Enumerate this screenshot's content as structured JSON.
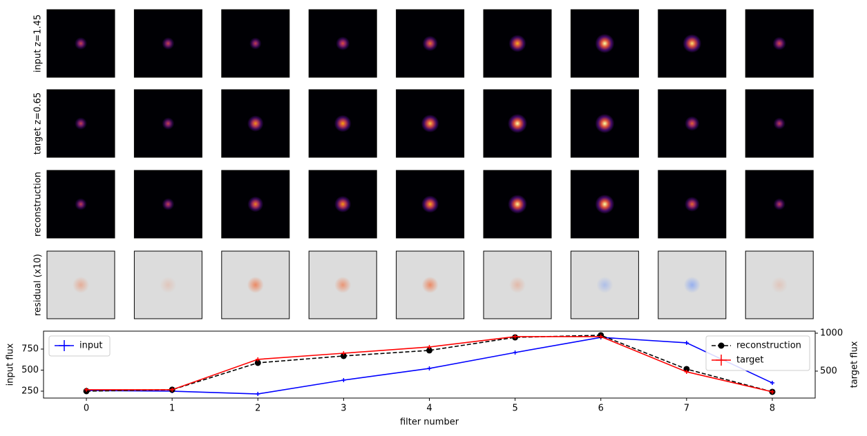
{
  "image_grid": {
    "row_labels": [
      "input z=1.45",
      "target z=0.65",
      "reconstruction",
      "residual (x10)"
    ]
  },
  "chart_data": {
    "type": "line",
    "xlabel": "filter number",
    "ylabel": "input flux",
    "y2label": "target flux",
    "x": [
      0,
      1,
      2,
      3,
      4,
      5,
      6,
      7,
      8
    ],
    "xlim": [
      -0.5,
      8.5
    ],
    "xticks": [
      0,
      1,
      2,
      3,
      4,
      5,
      6,
      7,
      8
    ],
    "ylim": [
      168,
      963
    ],
    "yticks": [
      250,
      500,
      750
    ],
    "y2lim": [
      145,
      1027
    ],
    "y2ticks": [
      500,
      1000
    ],
    "series": [
      {
        "name": "input",
        "color": "#0000ff",
        "axis": "y",
        "linestyle": "solid",
        "marker": "plus",
        "legend": "upper left",
        "values": [
          258,
          250,
          217,
          381,
          520,
          709,
          889,
          824,
          348
        ]
      },
      {
        "name": "reconstruction",
        "color": "#000000",
        "axis": "y2",
        "linestyle": "dashed",
        "marker": "circle",
        "legend": "upper right",
        "values": [
          236,
          255,
          609,
          700,
          773,
          945,
          973,
          527,
          227
        ]
      },
      {
        "name": "target",
        "color": "#ff0000",
        "axis": "y2",
        "linestyle": "solid",
        "marker": "plus",
        "legend": "upper right",
        "values": [
          255,
          255,
          655,
          736,
          818,
          955,
          955,
          491,
          227
        ]
      }
    ]
  }
}
